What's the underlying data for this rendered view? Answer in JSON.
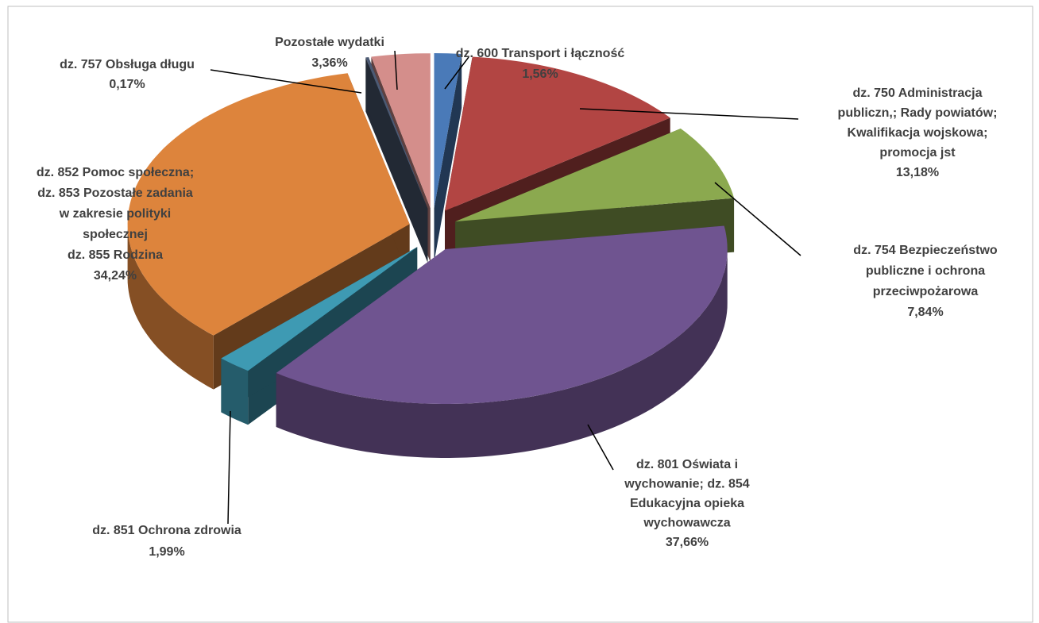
{
  "chart_data": {
    "type": "pie3d",
    "categories": [
      [
        "dz. 600 Transport i łączność"
      ],
      [
        "dz. 750 Administracja",
        "publiczn,; Rady powiatów;",
        "Kwalifikacja  wojskowa;",
        "promocja jst"
      ],
      [
        "dz. 754 Bezpieczeństwo",
        "publiczne i ochrona",
        "przeciwpożarowa"
      ],
      [
        "dz. 801 Oświata i",
        "wychowanie; dz. 854",
        "Edukacyjna opieka",
        "wychowawcza"
      ],
      [
        "dz. 851 Ochrona zdrowia"
      ],
      [
        "dz. 852 Pomoc społeczna;",
        "dz. 853 Pozostałe zadania",
        "w zakresie polityki",
        "społecznej",
        "dz. 855 Rodzina"
      ],
      [
        "dz. 757 Obsługa długu"
      ],
      [
        "Pozostałe wydatki"
      ]
    ],
    "values": [
      1.56,
      13.18,
      7.84,
      37.66,
      1.99,
      34.24,
      0.17,
      3.36
    ],
    "value_labels": [
      "1,56%",
      "13,18%",
      "7,84%",
      "37,66%",
      "1,99%",
      "34,24%",
      "0,17%",
      "3,36%"
    ],
    "colors": [
      "#4a7ab8",
      "#b24543",
      "#8ba94f",
      "#6f5490",
      "#3e9ab3",
      "#dd843c",
      "#4c5a74",
      "#d48e8b"
    ]
  }
}
